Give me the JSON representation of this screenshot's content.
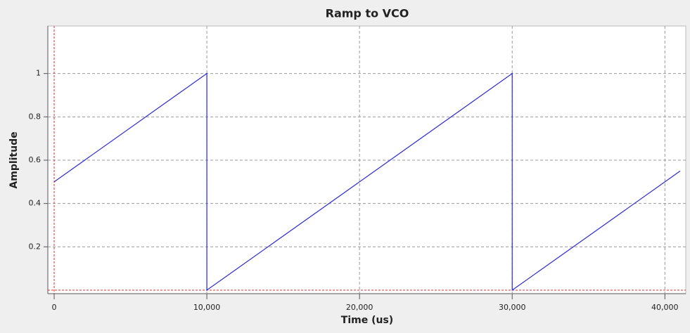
{
  "chart_data": {
    "type": "line",
    "title": "Ramp to VCO",
    "x_label": "Time (us)",
    "y_label": "Amplitude",
    "xlim": [
      0,
      41000
    ],
    "ylim": [
      0,
      1.2
    ],
    "xticks": [
      0,
      {
        "value": 10000,
        "label": "10,000"
      },
      {
        "value": 20000,
        "label": "20,000"
      },
      {
        "value": 30000,
        "label": "30,000"
      },
      {
        "value": 40000,
        "label": "40,000"
      }
    ],
    "yticks": [
      0.2,
      0.4,
      0.6,
      0.8,
      1
    ],
    "grid": true,
    "x": [
      0,
      10000,
      10000,
      30000,
      30000,
      41000
    ],
    "series": [
      {
        "color": "#2a2ad8",
        "values": [
          0.5,
          1,
          0,
          1,
          0,
          0.55
        ]
      }
    ]
  }
}
